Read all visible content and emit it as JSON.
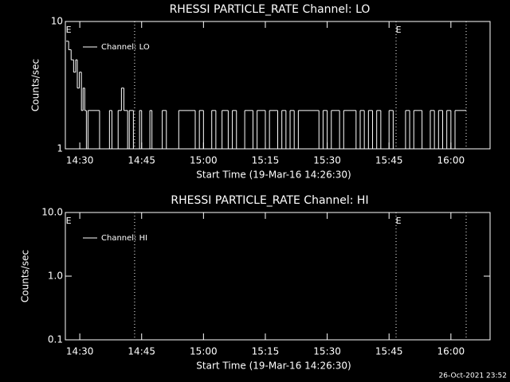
{
  "chart_data": [
    {
      "type": "line",
      "drawstyle": "steps",
      "title": "RHESSI PARTICLE_RATE Channel: LO",
      "xlabel": "Start Time (19-Mar-16 14:26:30)",
      "ylabel": "Counts/sec",
      "xlim": [
        26.5,
        129.5
      ],
      "xticks": [
        {
          "value": 30,
          "label": "14:30"
        },
        {
          "value": 45,
          "label": "14:45"
        },
        {
          "value": 60,
          "label": "15:00"
        },
        {
          "value": 75,
          "label": "15:15"
        },
        {
          "value": 90,
          "label": "15:30"
        },
        {
          "value": 105,
          "label": "15:45"
        },
        {
          "value": 120,
          "label": "16:00"
        }
      ],
      "ylim": [
        1,
        10
      ],
      "yticks": [
        1,
        10
      ],
      "log_y": true,
      "vlines": [
        43.3,
        106.7,
        123.7
      ],
      "annotations": [
        {
          "text": "E",
          "x": 27
        },
        {
          "text": "E",
          "x": 107
        }
      ],
      "legend": "top-left",
      "series": [
        {
          "name": "Channel: LO",
          "color": "#ffffff",
          "x": [
            26.7,
            27.3,
            27.9,
            28.5,
            29.0,
            29.4,
            29.9,
            30.4,
            30.8,
            31.2,
            31.6,
            32.0,
            34.8,
            37.2,
            37.8,
            38.4,
            39.3,
            40.1,
            40.7,
            41.6,
            42,
            43,
            44.5,
            45,
            47,
            47.5,
            50,
            51,
            54,
            58,
            59,
            60,
            62,
            63,
            64.5,
            66,
            67,
            68,
            70,
            72,
            73,
            75,
            76,
            78,
            79,
            80,
            81,
            82,
            83,
            88,
            89,
            90,
            91,
            93,
            94,
            97,
            98,
            99,
            100,
            101,
            102,
            103,
            105,
            106,
            109,
            110,
            111,
            113,
            115,
            116,
            117,
            118,
            119,
            120,
            121,
            123.7
          ],
          "values": [
            7,
            6,
            5,
            4,
            5,
            3,
            4,
            2,
            3,
            2,
            1,
            2,
            1,
            2,
            1,
            1,
            2,
            3,
            2,
            1,
            2,
            1,
            2,
            1,
            2,
            1,
            2,
            1,
            2,
            1,
            2,
            1,
            2,
            1,
            2,
            1,
            2,
            1,
            2,
            1,
            2,
            1,
            2,
            1,
            2,
            1,
            2,
            1,
            2,
            1,
            2,
            1,
            2,
            1,
            2,
            1,
            2,
            1,
            2,
            1,
            2,
            1,
            2,
            1,
            2,
            1,
            2,
            1,
            2,
            1,
            2,
            1,
            2,
            1,
            2,
            2
          ]
        }
      ]
    },
    {
      "type": "line",
      "drawstyle": "steps",
      "title": "RHESSI PARTICLE_RATE Channel: HI",
      "xlabel": "Start Time (19-Mar-16 14:26:30)",
      "ylabel": "Counts/sec",
      "xlim": [
        26.5,
        129.5
      ],
      "xticks": [
        {
          "value": 30,
          "label": "14:30"
        },
        {
          "value": 45,
          "label": "14:45"
        },
        {
          "value": 60,
          "label": "15:00"
        },
        {
          "value": 75,
          "label": "15:15"
        },
        {
          "value": 90,
          "label": "15:30"
        },
        {
          "value": 105,
          "label": "15:45"
        },
        {
          "value": 120,
          "label": "16:00"
        }
      ],
      "ylim": [
        0.1,
        10
      ],
      "yticks": [
        0.1,
        {
          "value": 1,
          "label": "1.0"
        },
        {
          "value": 10,
          "label": "10.0"
        }
      ],
      "log_y": true,
      "vlines": [
        43.3,
        106.7,
        123.7
      ],
      "annotations": [
        {
          "text": "E",
          "x": 27
        },
        {
          "text": "E",
          "x": 107
        }
      ],
      "legend": "top-left",
      "series": [
        {
          "name": "Channel: HI",
          "color": "#ffffff",
          "x": [],
          "values": []
        }
      ]
    }
  ],
  "footer": "26-Oct-2021 23:52"
}
